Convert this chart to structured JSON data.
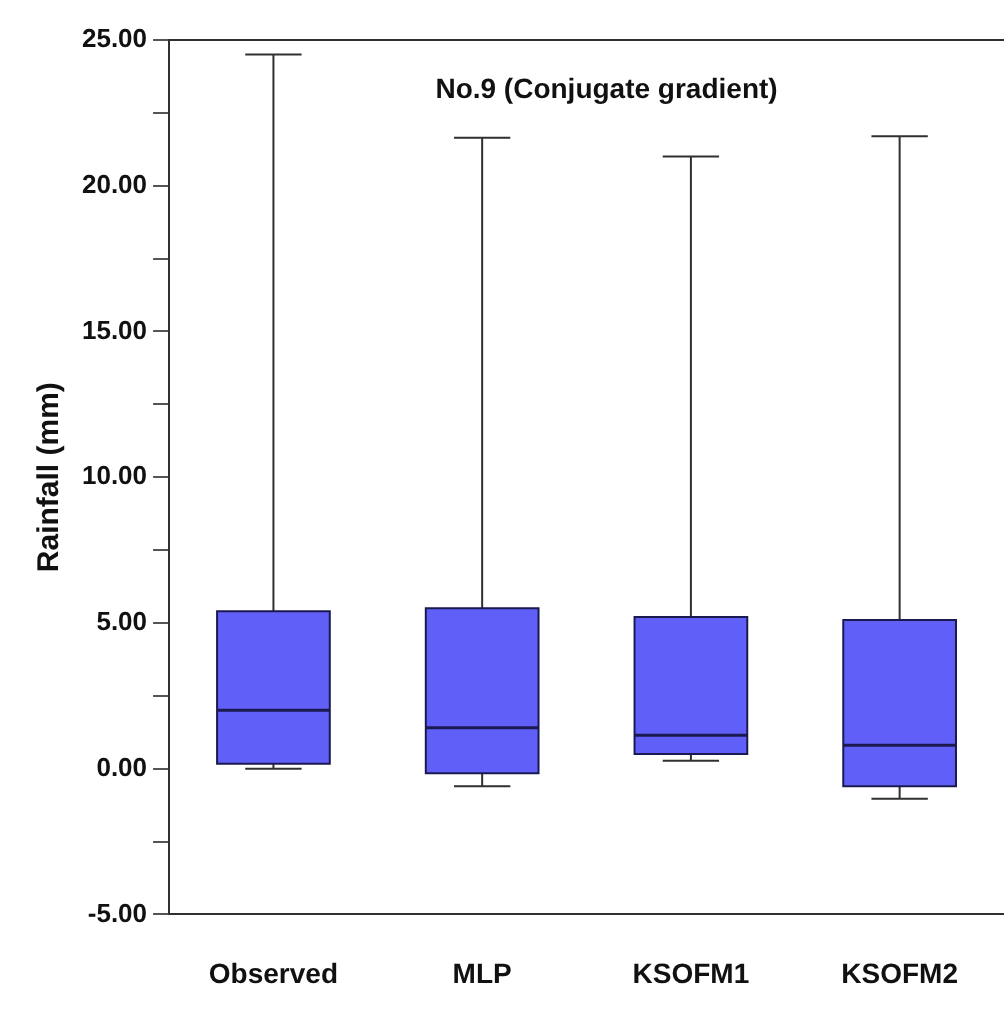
{
  "chart_data": {
    "type": "box",
    "title": "No.9 (Conjugate gradient)",
    "ylabel": "Rainfall (mm)",
    "categories": [
      "Observed",
      "MLP",
      "KSOFM1",
      "KSOFM2"
    ],
    "color": "#6060f8",
    "boxes": [
      {
        "low": 0.0,
        "q1": 0.17,
        "median": 2.0,
        "q3": 5.4,
        "high": 24.5
      },
      {
        "low": -0.6,
        "q1": -0.16,
        "median": 1.4,
        "q3": 5.5,
        "high": 21.65
      },
      {
        "low": 0.27,
        "q1": 0.5,
        "median": 1.15,
        "q3": 5.2,
        "high": 21.0
      },
      {
        "low": -1.03,
        "q1": -0.6,
        "median": 0.8,
        "q3": 5.1,
        "high": 21.7
      }
    ],
    "ylim": [
      -5,
      25
    ],
    "yticks": [
      {
        "value": -5,
        "label": "-5.00"
      },
      {
        "value": -2.5,
        "label": null
      },
      {
        "value": 0,
        "label": "0.00"
      },
      {
        "value": 2.5,
        "label": null
      },
      {
        "value": 5,
        "label": "5.00"
      },
      {
        "value": 7.5,
        "label": null
      },
      {
        "value": 10,
        "label": "10.00"
      },
      {
        "value": 12.5,
        "label": null
      },
      {
        "value": 15,
        "label": "15.00"
      },
      {
        "value": 17.5,
        "label": null
      },
      {
        "value": 20,
        "label": "20.00"
      },
      {
        "value": 22.5,
        "label": null
      },
      {
        "value": 25,
        "label": "25.00"
      }
    ],
    "grid": false,
    "legend": false
  }
}
